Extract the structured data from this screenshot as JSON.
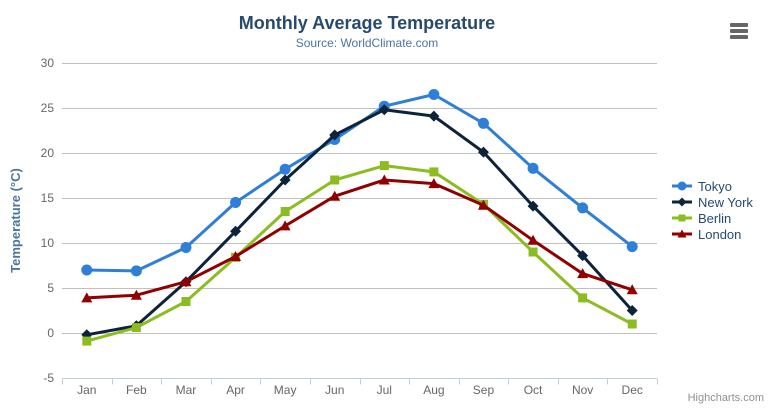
{
  "header": {
    "title": "Monthly Average Temperature",
    "subtitle": "Source: WorldClimate.com",
    "export_button": {
      "icon": "hamburger-menu-icon"
    }
  },
  "chart_data": {
    "type": "line",
    "title": "Monthly Average Temperature",
    "subtitle": "Source: WorldClimate.com",
    "categories": [
      "Jan",
      "Feb",
      "Mar",
      "Apr",
      "May",
      "Jun",
      "Jul",
      "Aug",
      "Sep",
      "Oct",
      "Nov",
      "Dec"
    ],
    "series": [
      {
        "name": "Tokyo",
        "color": "#2f7ed8",
        "marker": "circle",
        "values": [
          7.0,
          6.9,
          9.5,
          14.5,
          18.2,
          21.5,
          25.2,
          26.5,
          23.3,
          18.3,
          13.9,
          9.6
        ]
      },
      {
        "name": "New York",
        "color": "#0d233a",
        "marker": "diamond",
        "values": [
          -0.2,
          0.8,
          5.7,
          11.3,
          17.0,
          22.0,
          24.8,
          24.1,
          20.1,
          14.1,
          8.6,
          2.5
        ]
      },
      {
        "name": "Berlin",
        "color": "#8bbc21",
        "marker": "square",
        "values": [
          -0.9,
          0.6,
          3.5,
          8.4,
          13.5,
          17.0,
          18.6,
          17.9,
          14.3,
          9.0,
          3.9,
          1.0
        ]
      },
      {
        "name": "London",
        "color": "#910000",
        "marker": "triangle",
        "values": [
          3.9,
          4.2,
          5.7,
          8.5,
          11.9,
          15.2,
          17.0,
          16.6,
          14.2,
          10.3,
          6.6,
          4.8
        ]
      }
    ],
    "xlabel": "",
    "ylabel": "Temperature (°C)",
    "ylim": [
      -5,
      30
    ],
    "ytick_interval": 5,
    "yticks": [
      -5,
      0,
      5,
      10,
      15,
      20,
      25,
      30
    ],
    "grid": true,
    "legend_position": "right",
    "grid_color": "#c0c0c0",
    "axis_line_color": "#c0d0e0",
    "tick_color": "#c0d0e0",
    "axis_label_color": "#666666",
    "axis_title_color": "#4d759e"
  },
  "credits": {
    "label": "Highcharts.com"
  }
}
